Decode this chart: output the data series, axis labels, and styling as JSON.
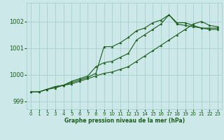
{
  "title": "Graphe pression niveau de la mer (hPa)",
  "background_color": "#cce8e8",
  "line_color": "#1a5c1a",
  "grid_color": "#aacece",
  "ylim": [
    998.7,
    1002.7
  ],
  "xlim": [
    -0.5,
    23.5
  ],
  "yticks": [
    999,
    1000,
    1001,
    1002
  ],
  "xticks": [
    0,
    1,
    2,
    3,
    4,
    5,
    6,
    7,
    8,
    9,
    10,
    11,
    12,
    13,
    14,
    15,
    16,
    17,
    18,
    19,
    20,
    21,
    22,
    23
  ],
  "series": [
    [
      999.35,
      999.35,
      999.45,
      999.55,
      999.6,
      999.7,
      999.8,
      999.9,
      1000.05,
      1001.05,
      1001.05,
      1001.2,
      1001.4,
      1001.65,
      1001.75,
      1001.95,
      1002.05,
      1002.25,
      1001.95,
      1001.95,
      1001.85,
      1001.75,
      1001.75,
      1001.75
    ],
    [
      999.35,
      999.35,
      999.45,
      999.55,
      999.6,
      999.75,
      999.85,
      999.95,
      1000.3,
      1000.45,
      1000.5,
      1000.65,
      1000.8,
      1001.3,
      1001.5,
      1001.7,
      1001.9,
      1002.25,
      1001.9,
      1001.85,
      1001.8,
      1001.75,
      1001.7,
      1001.7
    ],
    [
      999.35,
      999.35,
      999.45,
      999.5,
      999.6,
      999.65,
      999.75,
      999.85,
      999.95,
      1000.05,
      1000.1,
      1000.2,
      1000.3,
      1000.5,
      1000.7,
      1000.9,
      1001.1,
      1001.3,
      1001.5,
      1001.7,
      1001.9,
      1002.0,
      1001.85,
      1001.8
    ]
  ]
}
